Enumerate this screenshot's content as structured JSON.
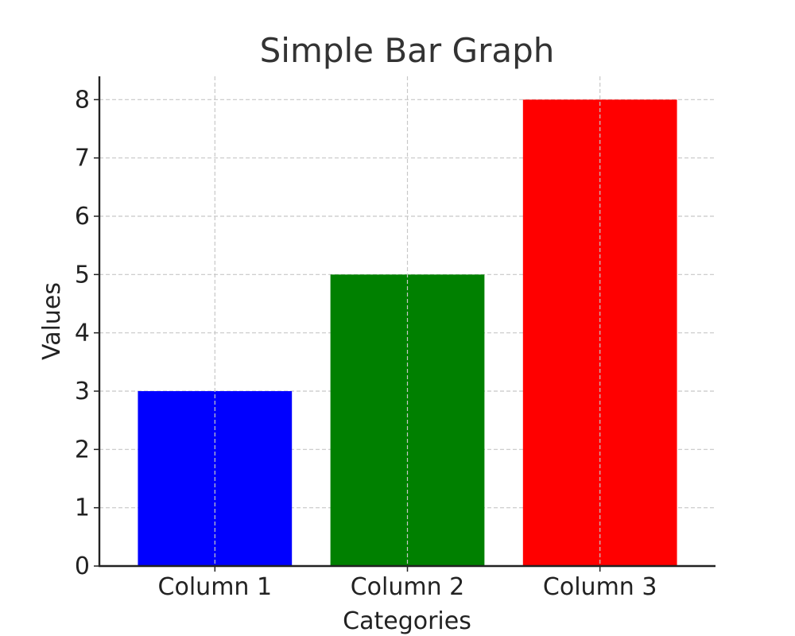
{
  "chart_data": {
    "type": "bar",
    "title": "Simple Bar Graph",
    "xlabel": "Categories",
    "ylabel": "Values",
    "categories": [
      "Column 1",
      "Column 2",
      "Column 3"
    ],
    "values": [
      3,
      5,
      8
    ],
    "colors": [
      "#0000ff",
      "#008000",
      "#ff0000"
    ],
    "ylim": [
      0,
      8.4
    ],
    "yticks": [
      0,
      1,
      2,
      3,
      4,
      5,
      6,
      7,
      8
    ],
    "grid": true
  }
}
